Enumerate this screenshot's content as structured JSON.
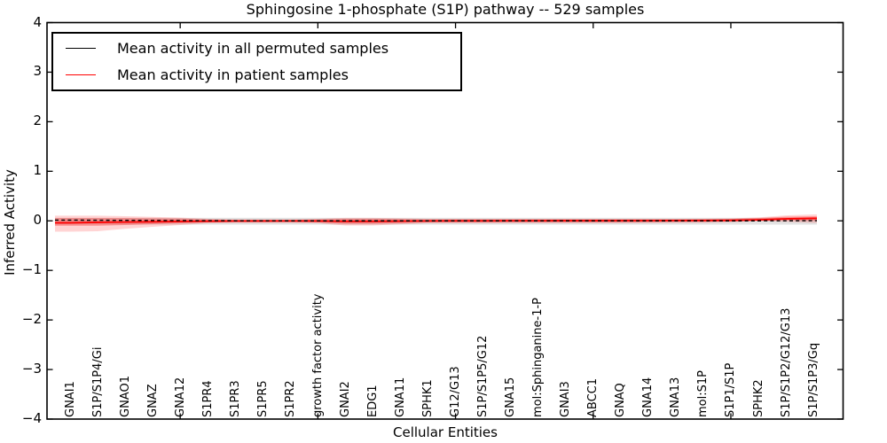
{
  "figure": {
    "title": "Sphingosine 1-phosphate (S1P) pathway -- 529 samples",
    "xlabel": "Cellular Entities",
    "ylabel": "Inferred Activity"
  },
  "legend": {
    "position": "upper left",
    "entries": [
      {
        "label": "Mean activity in all permuted samples",
        "color": "#000000"
      },
      {
        "label": "Mean activity in patient samples",
        "color": "#ff0000"
      }
    ]
  },
  "chart_data": {
    "type": "line",
    "title": "Sphingosine 1-phosphate (S1P) pathway -- 529 samples",
    "xlabel": "Cellular Entities",
    "ylabel": "Inferred Activity",
    "ylim": [
      -4,
      4
    ],
    "yticks": [
      4,
      3,
      2,
      1,
      0,
      -1,
      -2,
      -3,
      -4
    ],
    "xtick_indices": [
      4,
      9,
      14,
      19,
      24
    ],
    "grid": false,
    "legend_position": "upper left",
    "categories": [
      "GNAI1",
      "S1P/S1P4/Gi",
      "GNAO1",
      "GNAZ",
      "GNA12",
      "S1PR4",
      "S1PR3",
      "S1PR5",
      "S1PR2",
      "growth factor activity",
      "GNAI2",
      "EDG1",
      "GNA11",
      "SPHK1",
      "G12/G13",
      "S1P/S1P5/G12",
      "GNA15",
      "mol:Sphinganine-1-P",
      "GNAI3",
      "ABCC1",
      "GNAQ",
      "GNA14",
      "GNA13",
      "mol:S1P",
      "S1P1/S1P",
      "SPHK2",
      "S1P/S1P2/G12/G13",
      "S1P/S1P3/Gq"
    ],
    "series": [
      {
        "name": "Mean activity in all permuted samples",
        "color": "#000000",
        "line_style": "dashed",
        "values": [
          0.015,
          0.012,
          0.01,
          0.008,
          0.005,
          0.003,
          0.002,
          0.001,
          0,
          0,
          0,
          0,
          0,
          0,
          0,
          0,
          0,
          0,
          0,
          0,
          0,
          0,
          0,
          0,
          0,
          0,
          0.002,
          0.003
        ]
      },
      {
        "name": "Mean activity in patient samples",
        "color": "#ff0000",
        "line_style": "solid",
        "values": [
          -0.04,
          -0.03,
          -0.025,
          -0.02,
          -0.012,
          -0.008,
          -0.005,
          -0.003,
          -0.002,
          -0.003,
          -0.01,
          -0.01,
          -0.006,
          -0.002,
          0,
          0,
          0.002,
          0.002,
          0.003,
          0.003,
          0.004,
          0.004,
          0.006,
          0.008,
          0.01,
          0.02,
          0.04,
          0.05
        ]
      }
    ],
    "bands": [
      {
        "name": "permuted-std-band",
        "color": "#999999",
        "opacity": 0.28,
        "upper": [
          0.06,
          0.06,
          0.06,
          0.06,
          0.06,
          0.06,
          0.06,
          0.06,
          0.06,
          0.06,
          0.06,
          0.06,
          0.06,
          0.06,
          0.06,
          0.06,
          0.06,
          0.06,
          0.06,
          0.06,
          0.06,
          0.06,
          0.06,
          0.06,
          0.06,
          0.06,
          0.06,
          0.06
        ],
        "lower": [
          -0.075,
          -0.075,
          -0.075,
          -0.075,
          -0.075,
          -0.075,
          -0.075,
          -0.075,
          -0.075,
          -0.075,
          -0.075,
          -0.075,
          -0.075,
          -0.075,
          -0.075,
          -0.075,
          -0.075,
          -0.075,
          -0.075,
          -0.075,
          -0.075,
          -0.075,
          -0.075,
          -0.075,
          -0.075,
          -0.075,
          -0.075,
          -0.075
        ]
      },
      {
        "name": "patient-std-outer-band",
        "color": "#ff0000",
        "opacity": 0.17,
        "upper": [
          0.105,
          0.105,
          0.095,
          0.08,
          0.065,
          0.04,
          0.03,
          0.03,
          0.03,
          0.04,
          0.06,
          0.06,
          0.05,
          0.04,
          0.04,
          0.04,
          0.04,
          0.04,
          0.04,
          0.04,
          0.04,
          0.04,
          0.04,
          0.042,
          0.05,
          0.07,
          0.11,
          0.13
        ],
        "lower": [
          -0.22,
          -0.21,
          -0.16,
          -0.12,
          -0.085,
          -0.05,
          -0.04,
          -0.04,
          -0.04,
          -0.05,
          -0.095,
          -0.095,
          -0.07,
          -0.05,
          -0.05,
          -0.05,
          -0.05,
          -0.05,
          -0.05,
          -0.05,
          -0.048,
          -0.045,
          -0.04,
          -0.038,
          -0.03,
          -0.01,
          -0.02,
          -0.04
        ]
      },
      {
        "name": "patient-std-inner-band",
        "color": "#ff0000",
        "opacity": 0.28,
        "upper": [
          0.055,
          0.055,
          0.055,
          0.05,
          0.045,
          0.028,
          0.02,
          0.02,
          0.02,
          0.028,
          0.04,
          0.04,
          0.035,
          0.028,
          0.028,
          0.028,
          0.028,
          0.028,
          0.028,
          0.028,
          0.028,
          0.028,
          0.028,
          0.03,
          0.038,
          0.055,
          0.085,
          0.095
        ],
        "lower": [
          -0.1,
          -0.1,
          -0.085,
          -0.068,
          -0.05,
          -0.03,
          -0.022,
          -0.022,
          -0.022,
          -0.03,
          -0.058,
          -0.058,
          -0.045,
          -0.03,
          -0.03,
          -0.03,
          -0.03,
          -0.03,
          -0.03,
          -0.03,
          -0.028,
          -0.026,
          -0.022,
          -0.02,
          -0.012,
          0.002,
          0.012,
          0.005
        ]
      }
    ]
  },
  "layout_colors": {
    "background": "#ffffff",
    "axis": "#000000"
  }
}
